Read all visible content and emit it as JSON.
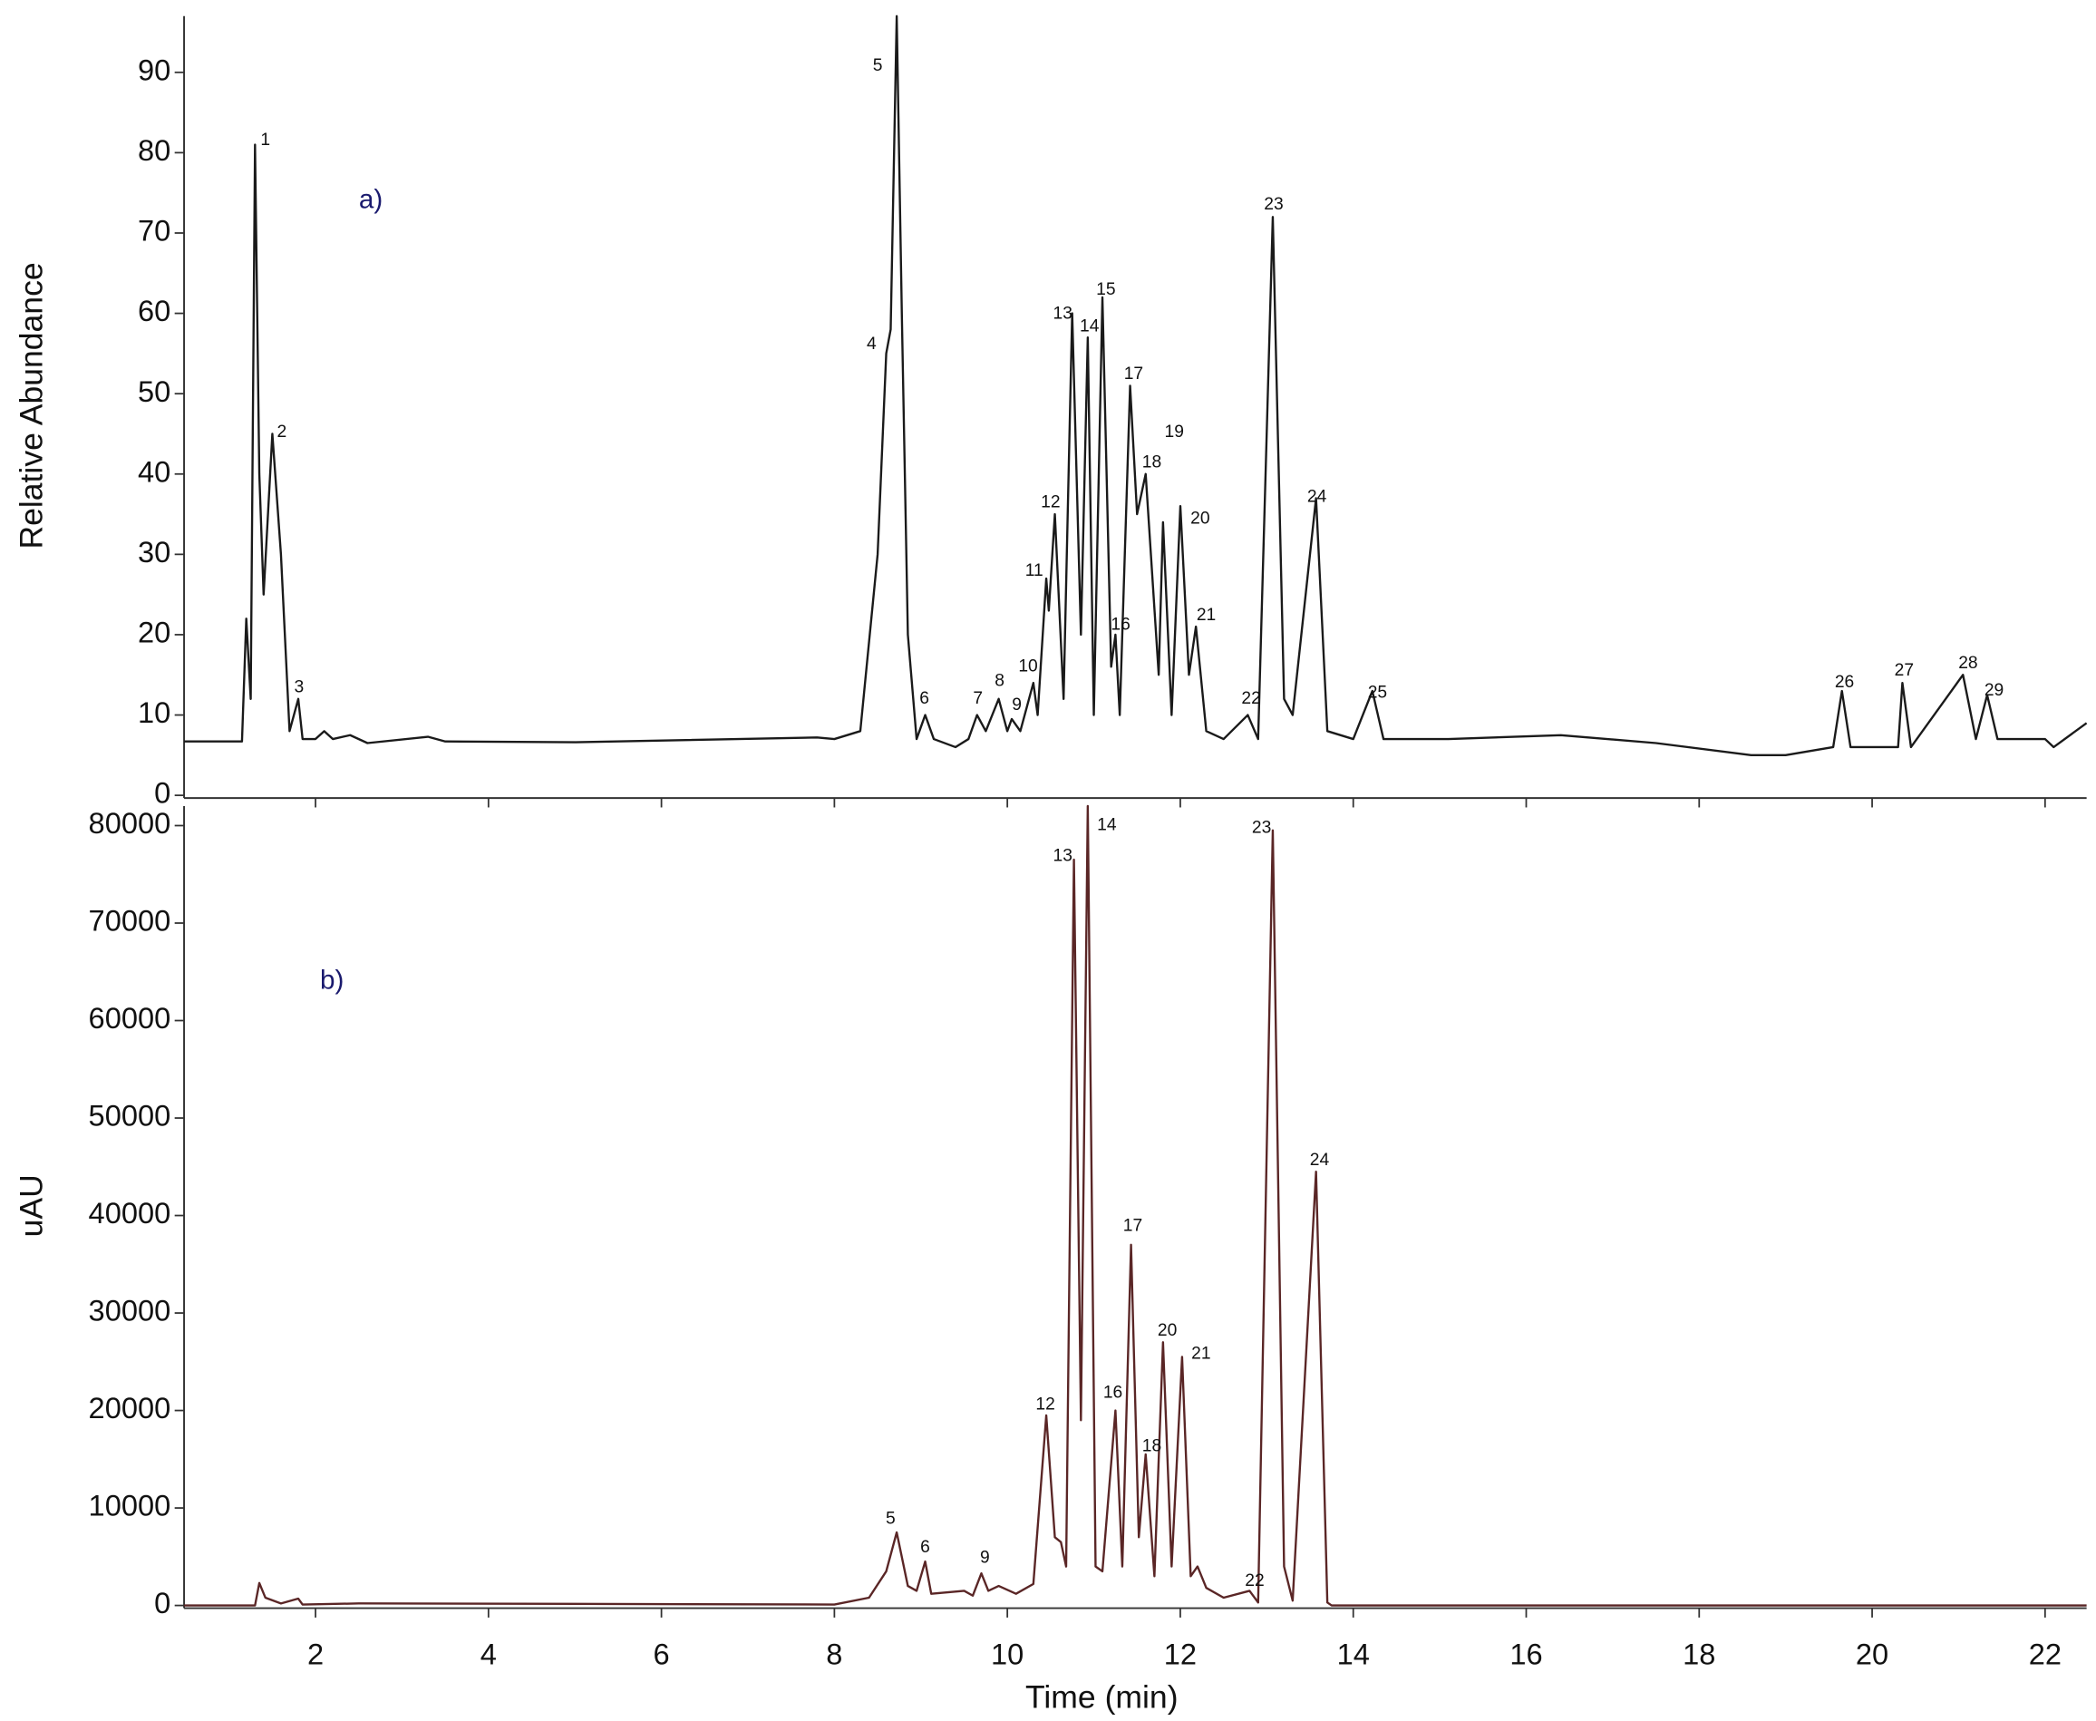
{
  "chart_data": [
    {
      "type": "line",
      "y_label": "Relative Abundance",
      "color": "#1a1a1a",
      "label_color": "#111111",
      "xlim": [
        0.48,
        22.48
      ],
      "ylim": [
        0,
        97
      ],
      "xticks": [
        2,
        4,
        6,
        8,
        10,
        12,
        14,
        16,
        18,
        20,
        22
      ],
      "yticks": [
        0,
        10,
        20,
        30,
        40,
        50,
        60,
        70,
        80,
        90
      ],
      "x": [
        0.48,
        1.15,
        1.2,
        1.25,
        1.3,
        1.35,
        1.4,
        1.5,
        1.6,
        1.7,
        1.8,
        1.85,
        2.0,
        2.1,
        2.2,
        2.4,
        2.6,
        3.3,
        3.5,
        5,
        7.8,
        8.0,
        8.3,
        8.5,
        8.6,
        8.65,
        8.72,
        8.78,
        8.85,
        8.95,
        9.05,
        9.15,
        9.4,
        9.55,
        9.65,
        9.75,
        9.9,
        10.0,
        10.05,
        10.15,
        10.3,
        10.35,
        10.45,
        10.48,
        10.55,
        10.65,
        10.75,
        10.85,
        10.93,
        11.0,
        11.1,
        11.2,
        11.25,
        11.3,
        11.42,
        11.5,
        11.6,
        11.75,
        11.8,
        11.9,
        12.0,
        12.1,
        12.18,
        12.3,
        12.5,
        12.78,
        12.9,
        13.07,
        13.2,
        13.3,
        13.57,
        13.7,
        14.0,
        14.22,
        14.35,
        15.1,
        16.4,
        17.5,
        18.6,
        19.0,
        19.55,
        19.65,
        19.75,
        20.3,
        20.35,
        20.45,
        21.05,
        21.2,
        21.33,
        21.45,
        22.0,
        22.1,
        22.48
      ],
      "values": [
        6.7,
        6.7,
        22,
        12,
        81,
        40,
        25,
        45,
        30,
        8,
        12,
        7,
        7,
        8,
        7,
        7.5,
        6.5,
        7.3,
        6.7,
        6.6,
        7.2,
        7,
        8,
        30,
        55,
        58,
        97,
        60,
        20,
        7,
        10,
        7,
        6,
        7,
        10,
        8,
        12,
        8,
        9.5,
        8,
        14,
        10,
        27,
        23,
        35,
        12,
        60,
        20,
        57,
        10,
        62,
        16,
        20,
        10,
        51,
        35,
        40,
        15,
        34,
        10,
        36,
        15,
        21,
        8,
        7,
        10,
        7,
        72,
        12,
        10,
        37,
        8,
        7,
        13,
        7,
        7,
        7.5,
        6.5,
        5,
        5,
        6,
        13,
        6,
        6,
        14,
        6,
        15,
        7,
        12.5,
        7,
        7,
        6,
        9
      ],
      "peak_labels": [
        {
          "text": "1",
          "x": 1.42,
          "y": 81.5
        },
        {
          "text": "2",
          "x": 1.61,
          "y": 45.2
        },
        {
          "text": "3",
          "x": 1.81,
          "y": 13.4
        },
        {
          "text": "4",
          "x": 8.43,
          "y": 56.1
        },
        {
          "text": "5",
          "x": 8.5,
          "y": 90.8
        },
        {
          "text": "6",
          "x": 9.04,
          "y": 12
        },
        {
          "text": "7",
          "x": 9.66,
          "y": 12
        },
        {
          "text": "8",
          "x": 9.91,
          "y": 14.2
        },
        {
          "text": "9",
          "x": 10.11,
          "y": 11.2
        },
        {
          "text": "10",
          "x": 10.24,
          "y": 16
        },
        {
          "text": "11",
          "x": 10.31,
          "y": 27.9
        },
        {
          "text": "12",
          "x": 10.5,
          "y": 36.4
        },
        {
          "text": "13",
          "x": 10.64,
          "y": 59.9
        },
        {
          "text": "14",
          "x": 10.95,
          "y": 58.3
        },
        {
          "text": "15",
          "x": 11.14,
          "y": 62.9
        },
        {
          "text": "16",
          "x": 11.31,
          "y": 21.2
        },
        {
          "text": "17",
          "x": 11.46,
          "y": 52.4
        },
        {
          "text": "18",
          "x": 11.67,
          "y": 41.4
        },
        {
          "text": "19",
          "x": 11.93,
          "y": 45.2
        },
        {
          "text": "20",
          "x": 12.23,
          "y": 34.4
        },
        {
          "text": "21",
          "x": 12.3,
          "y": 22.4
        },
        {
          "text": "22",
          "x": 12.82,
          "y": 12
        },
        {
          "text": "23",
          "x": 13.08,
          "y": 73.5
        },
        {
          "text": "24",
          "x": 13.58,
          "y": 37.1
        },
        {
          "text": "25",
          "x": 14.28,
          "y": 12.7
        },
        {
          "text": "26",
          "x": 19.68,
          "y": 14
        },
        {
          "text": "27",
          "x": 20.37,
          "y": 15.5
        },
        {
          "text": "28",
          "x": 21.11,
          "y": 16.4
        },
        {
          "text": "29",
          "x": 21.41,
          "y": 13
        }
      ],
      "annotations": [
        {
          "text": "a)",
          "x": 2.64,
          "y": 74,
          "color": "#1a1a6e"
        }
      ]
    },
    {
      "type": "line",
      "x_label": "Time (min)",
      "y_label": "uAU",
      "color": "#5a2626",
      "label_color": "#111111",
      "xlim": [
        0.48,
        22.48
      ],
      "ylim": [
        0,
        82000
      ],
      "xticks": [
        2,
        4,
        6,
        8,
        10,
        12,
        14,
        16,
        18,
        20,
        22
      ],
      "yticks": [
        0,
        10000,
        20000,
        30000,
        40000,
        50000,
        60000,
        70000,
        80000
      ],
      "x": [
        0.48,
        1.3,
        1.35,
        1.42,
        1.6,
        1.8,
        1.85,
        2.5,
        5.4,
        8.0,
        8.4,
        8.6,
        8.72,
        8.85,
        8.95,
        9.05,
        9.12,
        9.5,
        9.6,
        9.7,
        9.78,
        9.9,
        10.1,
        10.3,
        10.45,
        10.55,
        10.62,
        10.68,
        10.77,
        10.85,
        10.93,
        11.02,
        11.1,
        11.25,
        11.33,
        11.43,
        11.52,
        11.6,
        11.7,
        11.8,
        11.9,
        12.02,
        12.12,
        12.2,
        12.3,
        12.5,
        12.8,
        12.9,
        13.07,
        13.2,
        13.3,
        13.57,
        13.7,
        13.75,
        22.48
      ],
      "values": [
        0,
        0,
        2300,
        800,
        200,
        700,
        100,
        200,
        150,
        100,
        800,
        3500,
        7500,
        2000,
        1500,
        4500,
        1200,
        1500,
        1000,
        3300,
        1500,
        2000,
        1200,
        2200,
        19500,
        7000,
        6500,
        4000,
        76500,
        19000,
        82000,
        4000,
        3500,
        20000,
        4000,
        37000,
        7000,
        15500,
        3000,
        27000,
        4000,
        25500,
        3000,
        4000,
        1800,
        800,
        1500,
        300,
        79500,
        4000,
        500,
        44500,
        300,
        0,
        0
      ],
      "peak_labels": [
        {
          "text": "5",
          "x": 8.65,
          "y": 8830
        },
        {
          "text": "6",
          "x": 9.05,
          "y": 5930
        },
        {
          "text": "9",
          "x": 9.74,
          "y": 4830
        },
        {
          "text": "12",
          "x": 10.44,
          "y": 20550
        },
        {
          "text": "13",
          "x": 10.64,
          "y": 76830
        },
        {
          "text": "14",
          "x": 11.15,
          "y": 80000
        },
        {
          "text": "16",
          "x": 11.22,
          "y": 21790
        },
        {
          "text": "17",
          "x": 11.45,
          "y": 38900
        },
        {
          "text": "18",
          "x": 11.67,
          "y": 16280
        },
        {
          "text": "20",
          "x": 11.85,
          "y": 28140
        },
        {
          "text": "21",
          "x": 12.24,
          "y": 25790
        },
        {
          "text": "22",
          "x": 12.86,
          "y": 2480
        },
        {
          "text": "23",
          "x": 12.94,
          "y": 79720
        },
        {
          "text": "24",
          "x": 13.61,
          "y": 45650
        }
      ],
      "annotations": [
        {
          "text": "b)",
          "x": 2.19,
          "y": 64000,
          "color": "#1a1a6e"
        }
      ]
    }
  ]
}
